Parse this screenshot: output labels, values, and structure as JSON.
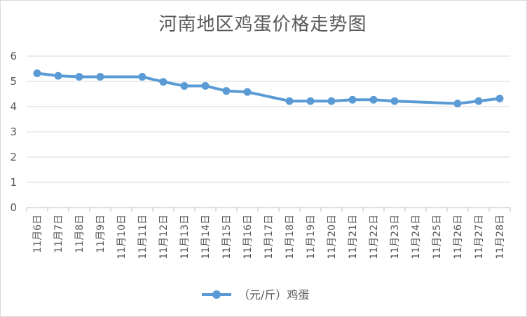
{
  "chart_data": {
    "type": "line",
    "title": "河南地区鸡蛋价格走势图",
    "categories": [
      "11月6日",
      "11月7日",
      "11月8日",
      "11月9日",
      "11月10日",
      "11月11日",
      "11月12日",
      "11月13日",
      "11月14日",
      "11月15日",
      "11月16日",
      "11月17日",
      "11月18日",
      "11月19日",
      "11月20日",
      "11月21日",
      "11月22日",
      "11月23日",
      "11月24日",
      "11月25日",
      "11月26日",
      "11月27日",
      "11月28日"
    ],
    "series": [
      {
        "name": "（元/斤）鸡蛋",
        "color": "#5b9bd5",
        "values": [
          5.32,
          5.22,
          5.18,
          5.18,
          null,
          5.18,
          4.98,
          4.82,
          4.82,
          4.62,
          4.58,
          null,
          4.22,
          4.22,
          4.22,
          4.27,
          4.27,
          4.22,
          null,
          null,
          4.12,
          4.22,
          4.32
        ]
      }
    ],
    "ylim": [
      0,
      6
    ],
    "yticks": [
      0,
      1,
      2,
      3,
      4,
      5,
      6
    ],
    "grid": true,
    "legend": "bottom"
  }
}
